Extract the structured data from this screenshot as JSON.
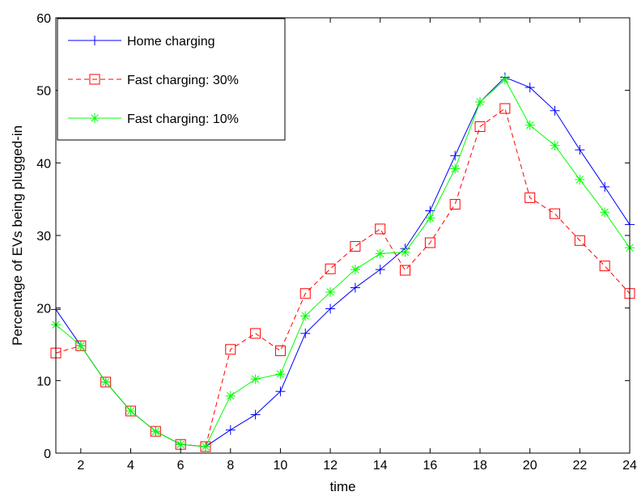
{
  "chart_data": {
    "type": "line",
    "xlabel": "time",
    "ylabel": "Percentage of EVs being plugged-in",
    "xlim": [
      1,
      24
    ],
    "ylim": [
      0,
      60
    ],
    "xticks": [
      2,
      4,
      6,
      8,
      10,
      12,
      14,
      16,
      18,
      20,
      22,
      24
    ],
    "yticks": [
      0,
      10,
      20,
      30,
      40,
      50,
      60
    ],
    "grid": false,
    "legend_position": "top-left",
    "x": [
      1,
      2,
      3,
      4,
      5,
      6,
      7,
      8,
      9,
      10,
      11,
      12,
      13,
      14,
      15,
      16,
      17,
      18,
      19,
      20,
      21,
      22,
      23,
      24
    ],
    "series": [
      {
        "name": "Home charging",
        "color": "#0000ff",
        "line": "solid",
        "marker": "plus",
        "values": [
          19.8,
          14.8,
          9.8,
          5.8,
          3.0,
          1.2,
          0.9,
          3.2,
          5.3,
          8.5,
          16.5,
          19.9,
          22.8,
          25.3,
          28.2,
          33.4,
          41.0,
          48.4,
          51.8,
          50.4,
          47.2,
          41.8,
          36.7,
          31.5
        ]
      },
      {
        "name": "Fast charging: 30%",
        "color": "#ff0000",
        "line": "dashed",
        "marker": "square",
        "values": [
          13.8,
          14.8,
          9.8,
          5.8,
          3.0,
          1.2,
          0.9,
          14.3,
          16.5,
          14.1,
          22.0,
          25.4,
          28.5,
          30.9,
          25.2,
          29.0,
          34.3,
          45.0,
          47.5,
          35.2,
          33.0,
          29.3,
          25.8,
          22.0
        ]
      },
      {
        "name": "Fast charging: 10%",
        "color": "#00ff00",
        "line": "solid",
        "marker": "asterisk",
        "values": [
          17.7,
          14.8,
          9.8,
          5.8,
          3.0,
          1.2,
          0.9,
          7.9,
          10.2,
          10.9,
          18.9,
          22.2,
          25.3,
          27.5,
          27.7,
          32.4,
          39.2,
          48.4,
          51.5,
          45.2,
          42.4,
          37.7,
          33.2,
          28.3
        ]
      }
    ]
  }
}
